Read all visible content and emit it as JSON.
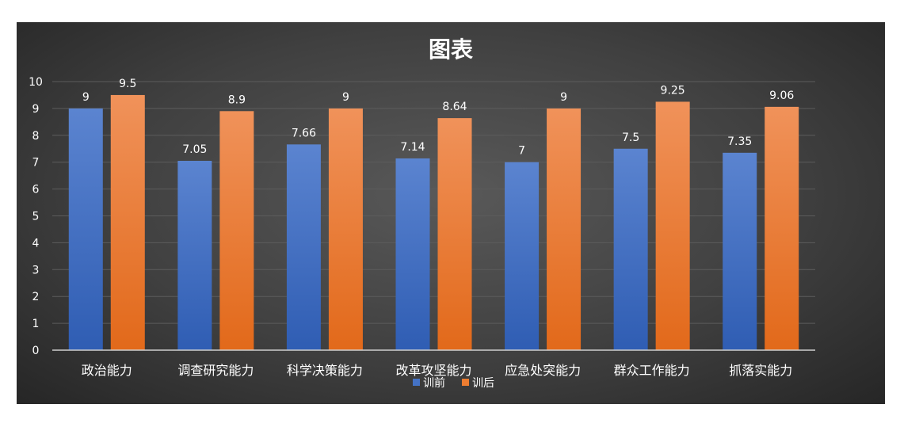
{
  "chart_data": {
    "type": "bar",
    "title": "图表",
    "categories": [
      "政治能力",
      "调查研究能力",
      "科学决策能力",
      "改革攻坚能力",
      "应急处突能力",
      "群众工作能力",
      "抓落实能力"
    ],
    "series": [
      {
        "name": "训前",
        "values": [
          9,
          7.05,
          7.66,
          7.14,
          7,
          7.5,
          7.35
        ],
        "labels": [
          "9",
          "7.05",
          "7.66",
          "7.14",
          "7",
          "7.5",
          "7.35"
        ],
        "color": "#4472C4"
      },
      {
        "name": "训后",
        "values": [
          9.5,
          8.9,
          9,
          8.64,
          9,
          9.25,
          9.06
        ],
        "labels": [
          "9.5",
          "8.9",
          "9",
          "8.64",
          "9",
          "9.25",
          "9.06"
        ],
        "color": "#ED7D31"
      }
    ],
    "ylim": [
      0,
      10
    ],
    "yticks": [
      "0",
      "1",
      "2",
      "3",
      "4",
      "5",
      "6",
      "7",
      "8",
      "9",
      "10"
    ],
    "xlabel": "",
    "ylabel": "",
    "grid": true,
    "legend_position": "bottom"
  }
}
